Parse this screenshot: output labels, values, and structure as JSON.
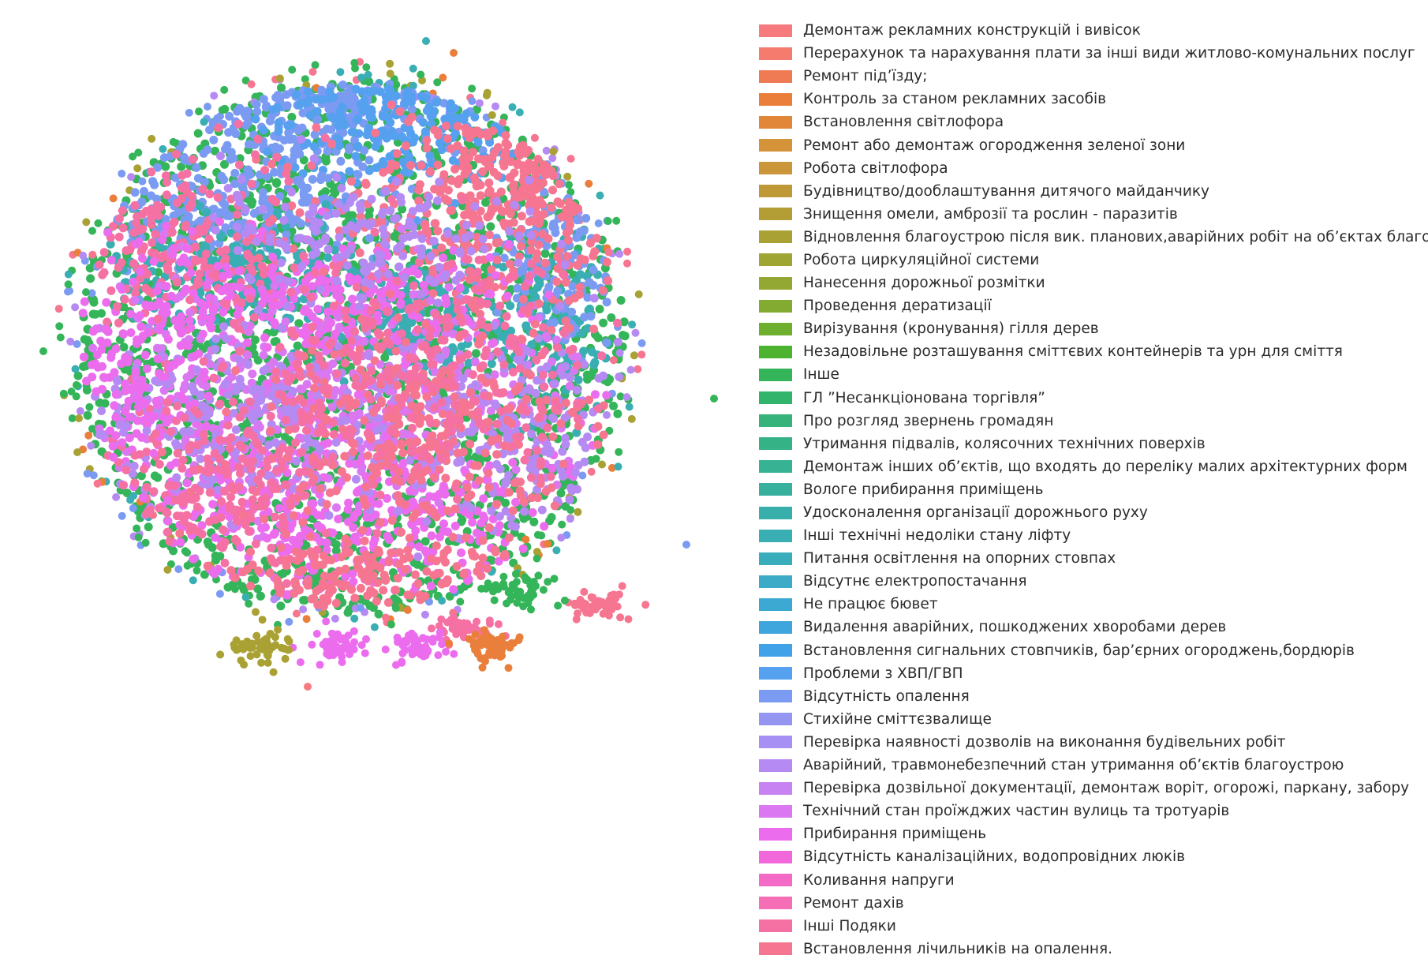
{
  "chart_data": {
    "type": "scatter",
    "title": "",
    "xlabel": "",
    "ylabel": "",
    "grid": false,
    "axes_visible": false,
    "legend_placement": "right",
    "series": [
      {
        "name": "Демонтаж рекламних конструкцій і вивісок",
        "color": "#f67a7e"
      },
      {
        "name": "Перерахунок та нарахування плати за інші види житлово-комунальних послуг",
        "color": "#f47b6e"
      },
      {
        "name": "Ремонт під’їзду;",
        "color": "#ef7b55"
      },
      {
        "name": "Контроль за станом рекламних засобів",
        "color": "#ea7f3c"
      },
      {
        "name": "Встановлення світлофора",
        "color": "#e0873a"
      },
      {
        "name": "Ремонт або демонтаж огородження зеленої зони",
        "color": "#d59339"
      },
      {
        "name": "Робота світлофора",
        "color": "#cb9539"
      },
      {
        "name": "Будівництво/дооблаштування дитячого майданчику",
        "color": "#be9936"
      },
      {
        "name": "Знищення омели, амброзії та рослин - паразитів",
        "color": "#b39d35"
      },
      {
        "name": "Відновлення благоустрою після вик. планових,аварійних робіт на об’єктах благоустрою",
        "color": "#a9a133"
      },
      {
        "name": "Робота циркуляційної системи",
        "color": "#9fa533"
      },
      {
        "name": "Нанесення дорожньої розмітки",
        "color": "#92a832"
      },
      {
        "name": "Проведення дератизації",
        "color": "#83ab31"
      },
      {
        "name": "Вирізування (кронування) гілля дерев",
        "color": "#6eaf30"
      },
      {
        "name": "Незадовільне розташування сміттєвих контейнерів та урн для сміття",
        "color": "#4db22f"
      },
      {
        "name": "Інше",
        "color": "#35b55a"
      },
      {
        "name": "ГЛ ”Несанкціонована торгівля”",
        "color": "#33b46c"
      },
      {
        "name": "Про розгляд звернень громадян",
        "color": "#35b37a"
      },
      {
        "name": "Утримання підвалів, колясочних технічних поверхів",
        "color": "#36b287"
      },
      {
        "name": "Демонтаж інших об’єктів, що входять до переліку малих архітектурних форм",
        "color": "#37b293"
      },
      {
        "name": "Вологе прибирання приміщень",
        "color": "#38b09e"
      },
      {
        "name": "Удосконалення організації дорожнього руху",
        "color": "#38afaa"
      },
      {
        "name": "Інші технічні недоліки стану ліфту",
        "color": "#39aeb3"
      },
      {
        "name": "Питання освітлення на опорних стовпах",
        "color": "#3aadbd"
      },
      {
        "name": "Відсутнє електропостачання",
        "color": "#3babc7"
      },
      {
        "name": "Не працює бювет",
        "color": "#3ca9d2"
      },
      {
        "name": "Видалення аварійних, пошкоджених хворобами дерев",
        "color": "#3ea6dc"
      },
      {
        "name": "Встановлення сигнальних стовпчиків, бар’єрних огороджень,бордюрів",
        "color": "#41a2e8"
      },
      {
        "name": "Проблеми з ХВП/ГВП",
        "color": "#56a0f0"
      },
      {
        "name": "Відсутність опалення",
        "color": "#7b9bf2"
      },
      {
        "name": "Стихійне сміттєзвалище",
        "color": "#9496f2"
      },
      {
        "name": "Перевірка наявності дозволів на виконання будівельних робіт",
        "color": "#a690f3"
      },
      {
        "name": "Аварійний, травмонебезпечний стан утримання об’єктів благоустрою",
        "color": "#b68af3"
      },
      {
        "name": "Перевірка дозвільної документації, демонтаж воріт, огорожі, паркану, забору",
        "color": "#c883f2"
      },
      {
        "name": "Технічний стан проїжджих частин вулиць та тротуарів",
        "color": "#da78f1"
      },
      {
        "name": "Прибирання приміщень",
        "color": "#ec6cee"
      },
      {
        "name": "Відсутність каналізаційних, водопровідних люків",
        "color": "#f267d9"
      },
      {
        "name": "Коливання напруги",
        "color": "#f46ac7"
      },
      {
        "name": "Ремонт дахів",
        "color": "#f56db4"
      },
      {
        "name": "Інші Подяки",
        "color": "#f671a3"
      },
      {
        "name": "Встановлення лічильників на опалення.",
        "color": "#f67590"
      }
    ]
  }
}
